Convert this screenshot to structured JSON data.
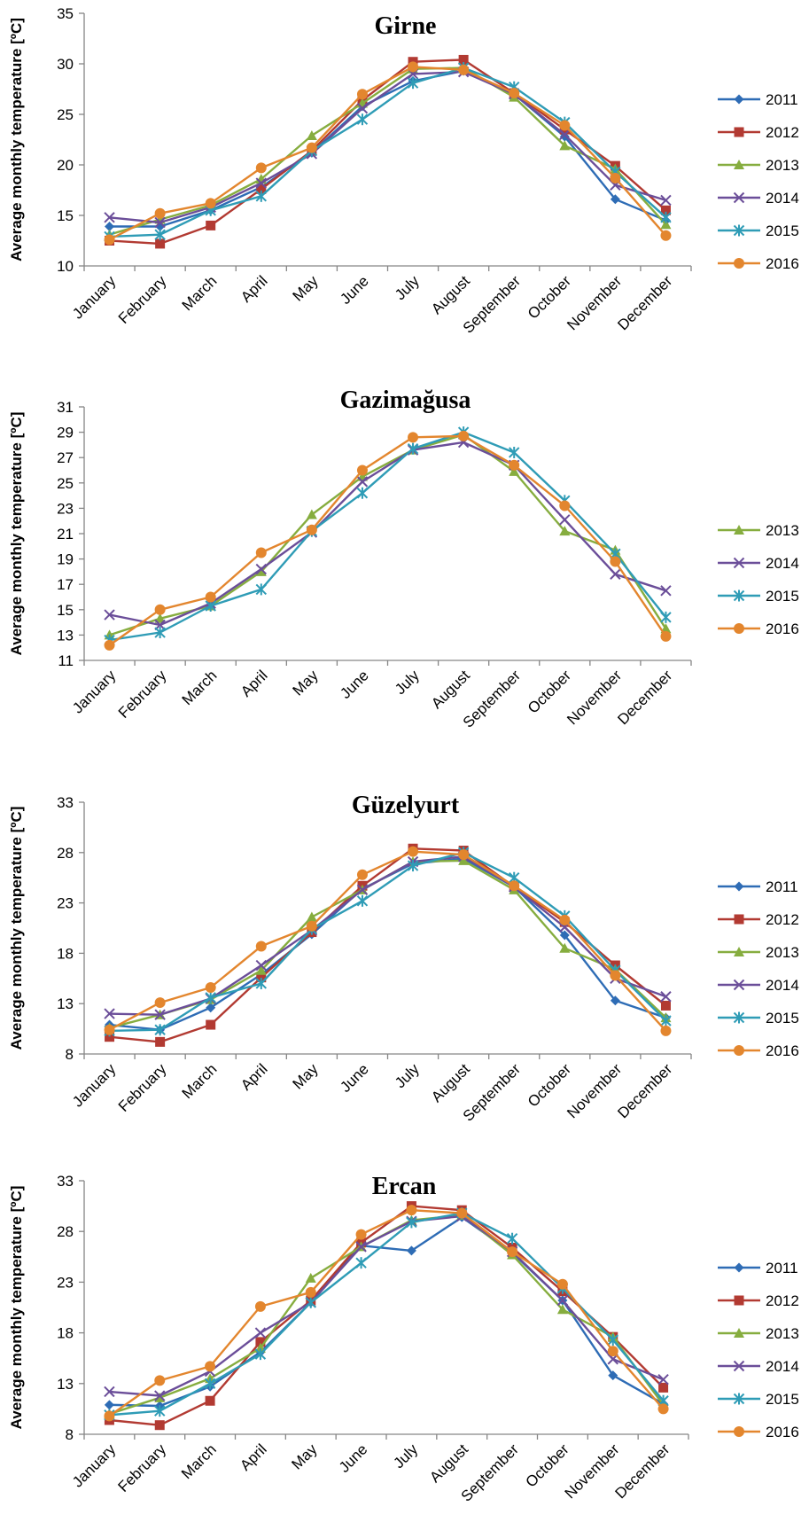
{
  "series_styles": {
    "2011": {
      "color": "#2E6CB5",
      "marker": "diamond"
    },
    "2012": {
      "color": "#B23A32",
      "marker": "square"
    },
    "2013": {
      "color": "#86AD3F",
      "marker": "triangle"
    },
    "2014": {
      "color": "#6B4E99",
      "marker": "x"
    },
    "2015": {
      "color": "#2F9CB6",
      "marker": "star"
    },
    "2016": {
      "color": "#E3862E",
      "marker": "circle"
    }
  },
  "chart_data": [
    {
      "type": "line",
      "title": "Girne",
      "ylabel": "Average monthly temperature [ºC]",
      "xlabel": "",
      "categories": [
        "January",
        "February",
        "March",
        "April",
        "May",
        "June",
        "July",
        "August",
        "September",
        "October",
        "November",
        "December"
      ],
      "ylim": [
        10,
        35
      ],
      "yticks": [
        10,
        15,
        20,
        25,
        30,
        35
      ],
      "grid": false,
      "legend": "right",
      "series": [
        {
          "name": "2011",
          "values": [
            13.9,
            13.9,
            15.5,
            17.8,
            21.2,
            25.8,
            28.3,
            29.3,
            27.0,
            22.8,
            16.6,
            14.5
          ]
        },
        {
          "name": "2012",
          "values": [
            12.5,
            12.2,
            14.0,
            17.6,
            21.4,
            26.4,
            30.2,
            30.4,
            27.1,
            23.5,
            19.9,
            15.5
          ]
        },
        {
          "name": "2013",
          "values": [
            13.1,
            14.6,
            16.0,
            18.6,
            22.9,
            26.1,
            29.5,
            29.6,
            26.7,
            21.9,
            19.6,
            14.1
          ]
        },
        {
          "name": "2014",
          "values": [
            14.8,
            14.3,
            15.8,
            18.2,
            21.1,
            25.6,
            29.0,
            29.2,
            27.0,
            23.0,
            18.0,
            16.5
          ]
        },
        {
          "name": "2015",
          "values": [
            12.9,
            13.1,
            15.5,
            16.9,
            21.4,
            24.5,
            28.1,
            29.6,
            27.7,
            24.2,
            19.3,
            14.8
          ]
        },
        {
          "name": "2016",
          "values": [
            12.6,
            15.2,
            16.2,
            19.7,
            21.7,
            27.0,
            29.7,
            29.4,
            27.1,
            23.9,
            18.7,
            13.0
          ]
        }
      ]
    },
    {
      "type": "line",
      "title": "Gazimağusa",
      "ylabel": "Average monthly temperature [ºC]",
      "xlabel": "",
      "categories": [
        "January",
        "February",
        "March",
        "April",
        "May",
        "June",
        "July",
        "August",
        "September",
        "October",
        "November",
        "December"
      ],
      "ylim": [
        11,
        31
      ],
      "yticks": [
        11,
        13,
        15,
        17,
        19,
        21,
        23,
        25,
        27,
        29,
        31
      ],
      "grid": false,
      "legend": "right",
      "series": [
        {
          "name": "2013",
          "values": [
            13.0,
            14.3,
            15.3,
            18.0,
            22.5,
            25.5,
            27.6,
            28.8,
            25.9,
            21.2,
            19.7,
            13.5
          ]
        },
        {
          "name": "2014",
          "values": [
            14.6,
            13.8,
            15.5,
            18.2,
            21.1,
            25.1,
            27.6,
            28.2,
            26.4,
            22.1,
            17.8,
            16.5
          ]
        },
        {
          "name": "2015",
          "values": [
            12.6,
            13.2,
            15.3,
            16.6,
            21.2,
            24.2,
            27.7,
            29.0,
            27.4,
            23.6,
            19.4,
            14.4
          ]
        },
        {
          "name": "2016",
          "values": [
            12.2,
            15.0,
            16.0,
            19.5,
            21.3,
            26.0,
            28.6,
            28.7,
            26.4,
            23.2,
            18.8,
            12.9
          ]
        }
      ]
    },
    {
      "type": "line",
      "title": "Güzelyurt",
      "ylabel": "Average monthly temperature [ºC]",
      "xlabel": "",
      "categories": [
        "January",
        "February",
        "March",
        "April",
        "May",
        "June",
        "July",
        "August",
        "September",
        "October",
        "November",
        "December"
      ],
      "ylim": [
        8,
        33
      ],
      "yticks": [
        8,
        13,
        18,
        23,
        28,
        33
      ],
      "grid": false,
      "legend": "right",
      "series": [
        {
          "name": "2011",
          "values": [
            10.9,
            10.4,
            12.6,
            15.9,
            19.9,
            24.4,
            26.9,
            27.4,
            24.6,
            19.8,
            13.3,
            11.6
          ]
        },
        {
          "name": "2012",
          "values": [
            9.7,
            9.2,
            10.9,
            15.6,
            20.1,
            24.7,
            28.4,
            28.2,
            24.6,
            21.1,
            16.8,
            12.8
          ]
        },
        {
          "name": "2013",
          "values": [
            10.6,
            11.9,
            13.4,
            16.3,
            21.6,
            24.3,
            27.1,
            27.2,
            24.3,
            18.5,
            16.4,
            11.6
          ]
        },
        {
          "name": "2014",
          "values": [
            12.0,
            11.9,
            13.5,
            16.8,
            20.3,
            24.3,
            27.1,
            27.6,
            24.6,
            20.6,
            15.5,
            13.7
          ]
        },
        {
          "name": "2015",
          "values": [
            10.3,
            10.4,
            13.6,
            15.0,
            20.4,
            23.2,
            26.7,
            28.0,
            25.5,
            21.7,
            16.3,
            11.3
          ]
        },
        {
          "name": "2016",
          "values": [
            10.4,
            13.1,
            14.6,
            18.7,
            20.7,
            25.8,
            28.1,
            27.8,
            24.7,
            21.3,
            15.8,
            10.3
          ]
        }
      ]
    },
    {
      "type": "line",
      "title": "Ercan",
      "ylabel": "Average monthly temperature [ºC]",
      "xlabel": "",
      "categories": [
        "January",
        "February",
        "March",
        "April",
        "May",
        "June",
        "July",
        "August",
        "September",
        "October",
        "November",
        "December"
      ],
      "ylim": [
        8,
        33
      ],
      "yticks": [
        8,
        13,
        18,
        23,
        28,
        33
      ],
      "grid": false,
      "legend": "right",
      "series": [
        {
          "name": "2011",
          "values": [
            10.9,
            10.8,
            12.7,
            16.1,
            21.0,
            26.6,
            26.1,
            29.4,
            25.9,
            21.2,
            13.8,
            11.0
          ]
        },
        {
          "name": "2012",
          "values": [
            9.4,
            8.9,
            11.3,
            17.1,
            21.2,
            26.9,
            30.5,
            30.1,
            26.4,
            22.1,
            17.6,
            12.6
          ]
        },
        {
          "name": "2013",
          "values": [
            10.0,
            11.6,
            13.5,
            16.5,
            23.4,
            26.5,
            29.1,
            29.6,
            25.7,
            20.3,
            17.6,
            10.9
          ]
        },
        {
          "name": "2014",
          "values": [
            12.2,
            11.8,
            14.2,
            18.0,
            21.0,
            26.5,
            29.0,
            29.5,
            26.0,
            21.2,
            15.4,
            13.4
          ]
        },
        {
          "name": "2015",
          "values": [
            9.9,
            10.3,
            13.0,
            15.9,
            21.0,
            24.9,
            28.9,
            29.8,
            27.3,
            22.4,
            17.3,
            11.3
          ]
        },
        {
          "name": "2016",
          "values": [
            9.8,
            13.3,
            14.7,
            20.6,
            22.0,
            27.7,
            30.1,
            29.8,
            26.0,
            22.8,
            16.2,
            10.5
          ]
        }
      ]
    }
  ]
}
